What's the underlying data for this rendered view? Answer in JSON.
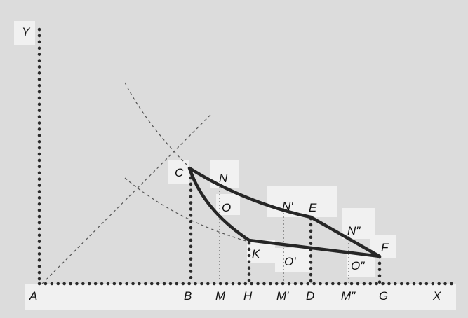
{
  "diagram": {
    "colors": {
      "background": "#dadada",
      "curve": "#262626",
      "dotted": "#2b2b2b",
      "guide": "#555555",
      "label_bg": "#f1f1f1"
    },
    "labels": {
      "Y": "Y",
      "X": "X",
      "A": "A",
      "B": "B",
      "M": "M",
      "H": "H",
      "M1": "M'",
      "D": "D",
      "M2": "M\"",
      "G": "G",
      "C": "C",
      "N": "N",
      "O": "O",
      "K": "K",
      "N1": "N'",
      "E": "E",
      "O1": "O'",
      "N2": "N\"",
      "F": "F",
      "O2": "O\""
    }
  }
}
